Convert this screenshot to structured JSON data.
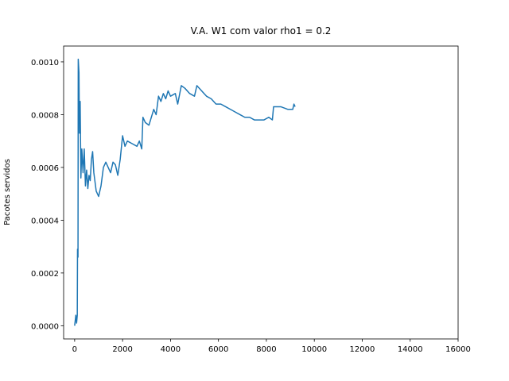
{
  "chart_data": {
    "type": "line",
    "title": "V.A. W1 com valor rho1 = 0.2",
    "ylabel": "Pacotes servidos",
    "x": [
      0,
      50,
      80,
      110,
      120,
      140,
      150,
      180,
      200,
      230,
      260,
      300,
      350,
      400,
      450,
      500,
      550,
      600,
      650,
      700,
      750,
      800,
      900,
      1000,
      1100,
      1200,
      1300,
      1400,
      1500,
      1600,
      1700,
      1800,
      1900,
      2000,
      2100,
      2200,
      2400,
      2600,
      2700,
      2800,
      2850,
      2950,
      3100,
      3300,
      3400,
      3500,
      3600,
      3700,
      3800,
      3900,
      4000,
      4200,
      4300,
      4450,
      4600,
      4800,
      5000,
      5100,
      5300,
      5500,
      5700,
      5900,
      6100,
      6300,
      6500,
      6700,
      6900,
      7100,
      7300,
      7500,
      7700,
      7900,
      8100,
      8250,
      8300,
      8600,
      8900,
      9100,
      9150,
      9200
    ],
    "series": [
      {
        "color": "#1f77b4",
        "values": [
          0,
          4e-05,
          1e-05,
          4e-05,
          0.00029,
          0.00026,
          0.00101,
          0.00096,
          0.00073,
          0.00085,
          0.00056,
          0.00067,
          0.00058,
          0.00067,
          0.00053,
          0.00059,
          0.00052,
          0.00057,
          0.00055,
          0.00063,
          0.00066,
          0.00058,
          0.00051,
          0.00049,
          0.00053,
          0.0006,
          0.00062,
          0.0006,
          0.00058,
          0.00062,
          0.00061,
          0.00057,
          0.00063,
          0.00072,
          0.00068,
          0.0007,
          0.00069,
          0.00068,
          0.0007,
          0.00067,
          0.00079,
          0.00077,
          0.00076,
          0.00082,
          0.0008,
          0.00087,
          0.00085,
          0.00088,
          0.00086,
          0.00089,
          0.00087,
          0.00088,
          0.00084,
          0.00091,
          0.0009,
          0.00088,
          0.00087,
          0.00091,
          0.00089,
          0.00087,
          0.00086,
          0.00084,
          0.00084,
          0.00083,
          0.00082,
          0.00081,
          0.0008,
          0.00079,
          0.00079,
          0.00078,
          0.00078,
          0.00078,
          0.00079,
          0.00078,
          0.00083,
          0.00083,
          0.00082,
          0.00082,
          0.00084,
          0.00083
        ]
      }
    ],
    "xlim": [
      -460,
      16000
    ],
    "ylim": [
      -5e-05,
      0.00106
    ],
    "xticks": [
      0,
      2000,
      4000,
      6000,
      8000,
      10000,
      12000,
      14000,
      16000
    ],
    "yticks": [
      {
        "value": 0,
        "label": "0.0000"
      },
      {
        "value": 0.0002,
        "label": "0.0002"
      },
      {
        "value": 0.0004,
        "label": "0.0004"
      },
      {
        "value": 0.0006,
        "label": "0.0006"
      },
      {
        "value": 0.0008,
        "label": "0.0008"
      },
      {
        "value": 0.001,
        "label": "0.0010"
      }
    ]
  }
}
